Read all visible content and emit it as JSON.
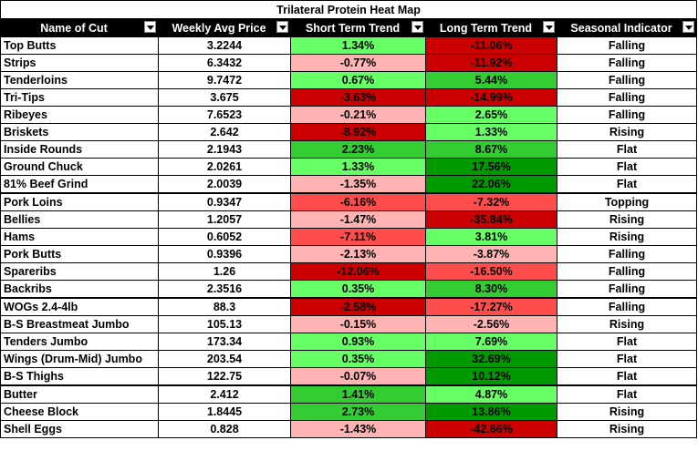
{
  "title": "Trilateral Protein Heat Map",
  "headers": [
    "Name of Cut",
    "Weekly Avg Price",
    "Short Term Trend",
    "Long Term Trend",
    "Seasonal Indicator"
  ],
  "colors": {
    "light_green": "#66ff66",
    "mid_green": "#33cc33",
    "dark_green": "#009900",
    "light_red": "#ffb3b3",
    "mid_red": "#ff4d4d",
    "dark_red": "#cc0000",
    "header_bg": "#000000",
    "header_text": "#ffffff"
  },
  "rows": [
    {
      "cut": "Top Butts",
      "price": "3.2244",
      "short": "1.34%",
      "long": "-11.06%",
      "seasonal": "Falling",
      "short_color": "light_green",
      "long_color": "dark_red"
    },
    {
      "cut": "Strips",
      "price": "6.3432",
      "short": "-0.77%",
      "long": "-11.92%",
      "seasonal": "Falling",
      "short_color": "light_red",
      "long_color": "dark_red"
    },
    {
      "cut": "Tenderloins",
      "price": "9.7472",
      "short": "0.67%",
      "long": "5.44%",
      "seasonal": "Falling",
      "short_color": "light_green",
      "long_color": "mid_green"
    },
    {
      "cut": "Tri-Tips",
      "price": "3.675",
      "short": "-3.63%",
      "long": "-14.99%",
      "seasonal": "Falling",
      "short_color": "dark_red",
      "long_color": "dark_red"
    },
    {
      "cut": "Ribeyes",
      "price": "7.6523",
      "short": "-0.21%",
      "long": "2.65%",
      "seasonal": "Falling",
      "short_color": "light_red",
      "long_color": "light_green"
    },
    {
      "cut": "Briskets",
      "price": "2.642",
      "short": "-8.92%",
      "long": "1.33%",
      "seasonal": "Rising",
      "short_color": "dark_red",
      "long_color": "light_green"
    },
    {
      "cut": "Inside Rounds",
      "price": "2.1943",
      "short": "2.23%",
      "long": "8.67%",
      "seasonal": "Flat",
      "short_color": "mid_green",
      "long_color": "mid_green"
    },
    {
      "cut": "Ground Chuck",
      "price": "2.0261",
      "short": "1.33%",
      "long": "17.56%",
      "seasonal": "Flat",
      "short_color": "light_green",
      "long_color": "dark_green"
    },
    {
      "cut": "81% Beef Grind",
      "price": "2.0039",
      "short": "-1.35%",
      "long": "22.06%",
      "seasonal": "Flat",
      "short_color": "light_red",
      "long_color": "dark_green",
      "section_end": true
    },
    {
      "cut": "Pork Loins",
      "price": "0.9347",
      "short": "-6.16%",
      "long": "-7.32%",
      "seasonal": "Topping",
      "short_color": "mid_red",
      "long_color": "mid_red"
    },
    {
      "cut": "Bellies",
      "price": "1.2057",
      "short": "-1.47%",
      "long": "-35.84%",
      "seasonal": "Rising",
      "short_color": "light_red",
      "long_color": "dark_red"
    },
    {
      "cut": "Hams",
      "price": "0.6052",
      "short": "-7.11%",
      "long": "3.81%",
      "seasonal": "Rising",
      "short_color": "mid_red",
      "long_color": "light_green"
    },
    {
      "cut": "Pork Butts",
      "price": "0.9396",
      "short": "-2.13%",
      "long": "-3.87%",
      "seasonal": "Falling",
      "short_color": "light_red",
      "long_color": "light_red"
    },
    {
      "cut": "Spareribs",
      "price": "1.26",
      "short": "-12.06%",
      "long": "-16.50%",
      "seasonal": "Falling",
      "short_color": "dark_red",
      "long_color": "mid_red"
    },
    {
      "cut": "Backribs",
      "price": "2.3516",
      "short": "0.35%",
      "long": "8.30%",
      "seasonal": "Falling",
      "short_color": "light_green",
      "long_color": "mid_green",
      "section_end": true
    },
    {
      "cut": "WOGs 2.4-4lb",
      "price": "88.3",
      "short": "-2.58%",
      "long": "-17.27%",
      "seasonal": "Falling",
      "short_color": "dark_red",
      "long_color": "mid_red"
    },
    {
      "cut": "B-S Breastmeat Jumbo",
      "price": "105.13",
      "short": "-0.15%",
      "long": "-2.56%",
      "seasonal": "Rising",
      "short_color": "light_red",
      "long_color": "light_red"
    },
    {
      "cut": "Tenders Jumbo",
      "price": "173.34",
      "short": "0.93%",
      "long": "7.69%",
      "seasonal": "Flat",
      "short_color": "light_green",
      "long_color": "light_green"
    },
    {
      "cut": "Wings (Drum-Mid) Jumbo",
      "price": "203.54",
      "short": "0.35%",
      "long": "32.69%",
      "seasonal": "Flat",
      "short_color": "light_green",
      "long_color": "dark_green"
    },
    {
      "cut": "B-S Thighs",
      "price": "122.75",
      "short": "-0.07%",
      "long": "10.12%",
      "seasonal": "Flat",
      "short_color": "light_red",
      "long_color": "dark_green",
      "section_end": true
    },
    {
      "cut": "Butter",
      "price": "2.412",
      "short": "1.41%",
      "long": "4.87%",
      "seasonal": "Flat",
      "short_color": "mid_green",
      "long_color": "light_green"
    },
    {
      "cut": "Cheese Block",
      "price": "1.8445",
      "short": "2.73%",
      "long": "13.86%",
      "seasonal": "Rising",
      "short_color": "mid_green",
      "long_color": "dark_green"
    },
    {
      "cut": "Shell Eggs",
      "price": "0.828",
      "short": "-1.43%",
      "long": "-42.66%",
      "seasonal": "Rising",
      "short_color": "light_red",
      "long_color": "dark_red"
    }
  ]
}
